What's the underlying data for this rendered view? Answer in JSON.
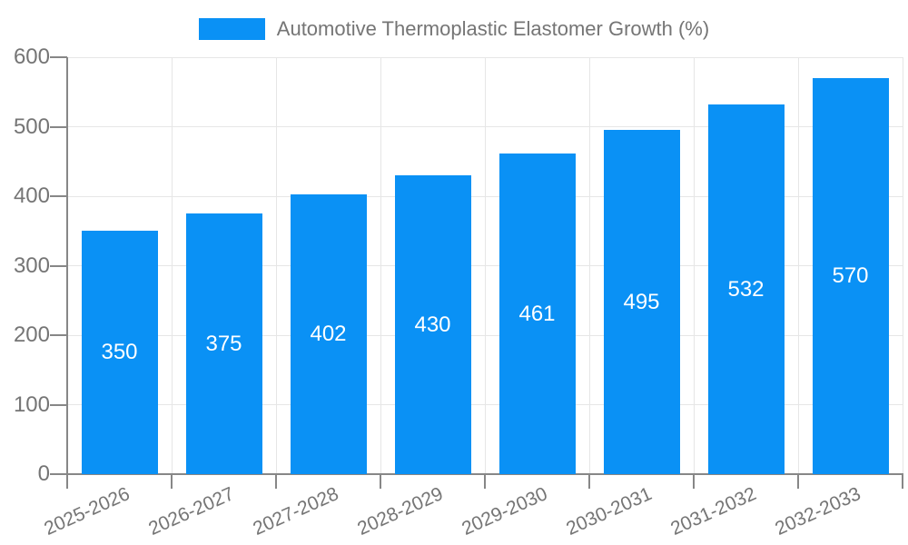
{
  "chart_data": {
    "type": "bar",
    "title": "Automotive Thermoplastic Elastomer Growth (%)",
    "categories": [
      "2025-2026",
      "2026-2027",
      "2027-2028",
      "2028-2029",
      "2029-2030",
      "2030-2031",
      "2031-2032",
      "2032-2033"
    ],
    "values": [
      350,
      375,
      402,
      430,
      461,
      495,
      532,
      570
    ],
    "xlabel": "",
    "ylabel": "",
    "ylim": [
      0,
      600
    ],
    "yticks": [
      0,
      100,
      200,
      300,
      400,
      500,
      600
    ],
    "grid": true,
    "legend_position": "top"
  },
  "legend": {
    "label": "Automotive Thermoplastic Elastomer Growth (%)",
    "swatch_icon": "blue-square-swatch"
  },
  "colors": {
    "bar": "#0a91f5",
    "grid": "#e6e6e6",
    "axis": "#878787",
    "text": "#757575",
    "bar_label": "#ffffff",
    "background": "#ffffff"
  }
}
